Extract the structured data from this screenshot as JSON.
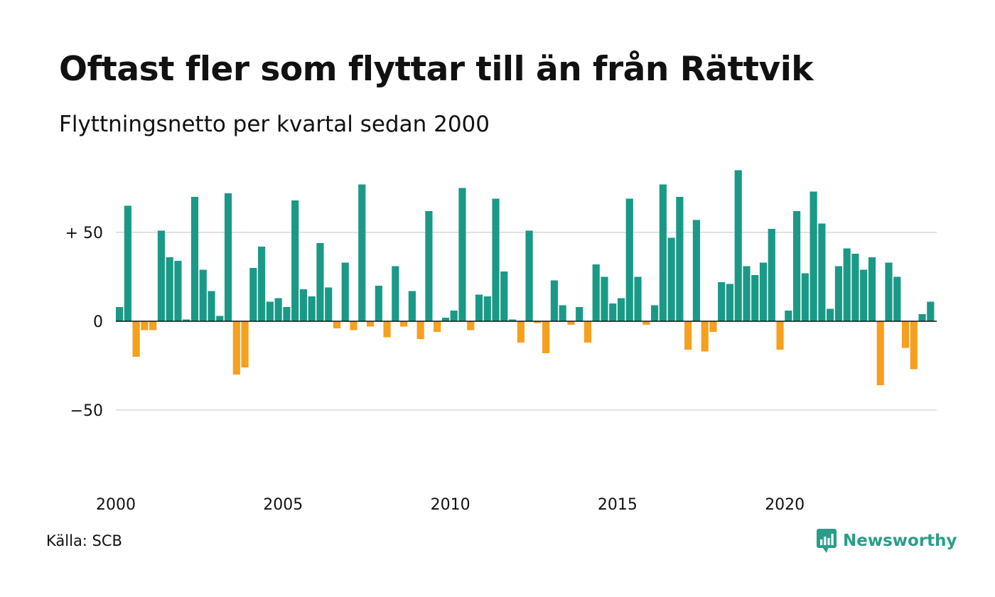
{
  "title": "Oftast fler som flyttar till än från Rättvik",
  "subtitle": "Flyttningsnetto per kvartal sedan 2000",
  "source": "Källa: SCB",
  "brand": {
    "name": "Newsworthy",
    "icon": "newsworthy-logo-icon",
    "color": "#2a9d8a"
  },
  "colors": {
    "positive": "#1a9987",
    "negative": "#f5a01e",
    "grid": "#e2e2e2",
    "zero": "#111111"
  },
  "chart_data": {
    "type": "bar",
    "x_start": "2000 Q1",
    "y_ticks": [
      {
        "value": 50,
        "label": "+ 50"
      },
      {
        "value": 0,
        "label": "0"
      },
      {
        "value": -50,
        "label": "−50"
      }
    ],
    "x_ticks": [
      "2000",
      "2005",
      "2010",
      "2015",
      "2020"
    ],
    "ylim": [
      -95,
      90
    ],
    "grid": true,
    "values": [
      8,
      65,
      -20,
      -5,
      -5,
      51,
      36,
      34,
      1,
      70,
      29,
      17,
      3,
      72,
      -30,
      -26,
      30,
      42,
      11,
      13,
      8,
      68,
      18,
      14,
      44,
      19,
      -4,
      33,
      -5,
      77,
      -3,
      20,
      -9,
      31,
      -3,
      17,
      -10,
      62,
      -6,
      2,
      6,
      75,
      -5,
      15,
      14,
      69,
      28,
      1,
      -12,
      51,
      -1,
      -18,
      23,
      9,
      -2,
      8,
      -12,
      32,
      25,
      10,
      13,
      69,
      25,
      -2,
      9,
      77,
      47,
      70,
      -16,
      57,
      -17,
      -6,
      22,
      21,
      85,
      31,
      26,
      33,
      52,
      -16,
      6,
      62,
      27,
      73,
      55,
      7,
      31,
      41,
      38,
      29,
      36,
      -36,
      33,
      25,
      -15,
      -27,
      4,
      11
    ]
  }
}
